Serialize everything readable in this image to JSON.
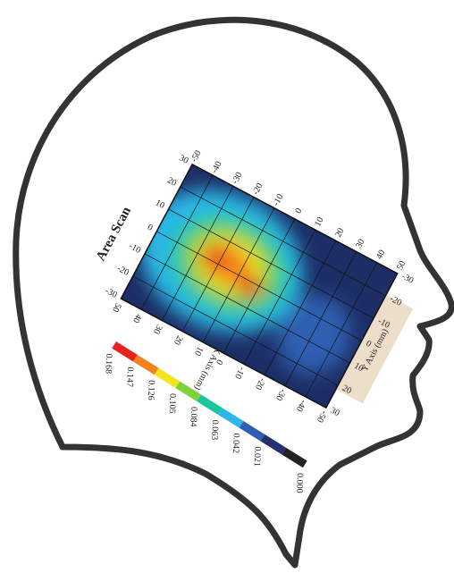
{
  "figure": {
    "title": "Area Scan",
    "x_axis": {
      "label": "X Axis (mm)",
      "ticks": [
        "-50",
        "-40",
        "-30",
        "-20",
        "-10",
        "0",
        "10",
        "20",
        "30",
        "40",
        "50"
      ]
    },
    "y_axis": {
      "label": "Y Axis (mm)",
      "ticks": [
        "-30",
        "-20",
        "-10",
        "0",
        "10",
        "20",
        "30"
      ]
    },
    "colorbar": {
      "labels": [
        "0.168",
        "0.147",
        "0.126",
        "0.105",
        "0.084",
        "0.063",
        "0.042",
        "0.021",
        "0.000"
      ],
      "colors": [
        "#e8231c",
        "#f4821f",
        "#f2e51e",
        "#7ed23a",
        "#18c6a0",
        "#2bb8e8",
        "#2f5fb0",
        "#23326e",
        "#222222"
      ]
    }
  }
}
